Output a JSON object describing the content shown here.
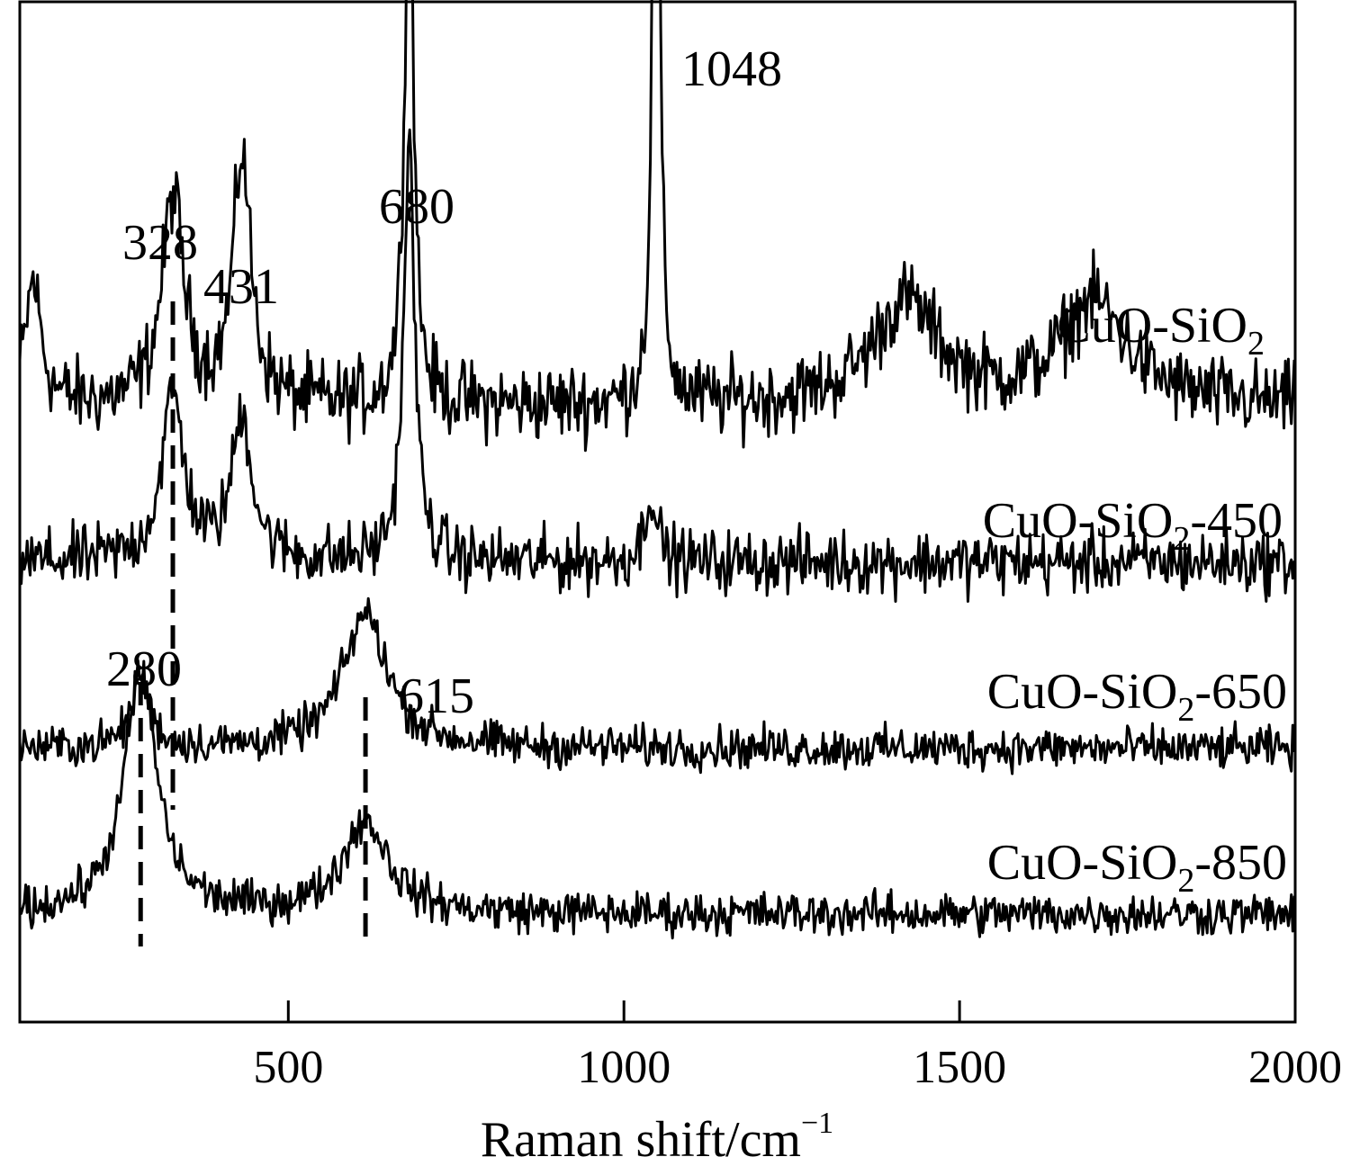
{
  "chart_data": {
    "type": "line",
    "title": "",
    "xlabel": "Raman shift/cm",
    "xlabel_superscript": "−1",
    "ylabel": "",
    "xlim": [
      100,
      2000
    ],
    "x_ticks": [
      500,
      1000,
      1500,
      2000
    ],
    "grid": false,
    "legend": "none",
    "line_color": "#000000",
    "series": [
      {
        "label_main": "CuO-SiO",
        "label_sub": "2",
        "label_suffix": "",
        "baseline": 0.55,
        "noise": 0.055,
        "peaks": [
          {
            "x": 120,
            "height": 0.12,
            "width": 14
          },
          {
            "x": 328,
            "height": 0.2,
            "width": 20
          },
          {
            "x": 431,
            "height": 0.24,
            "width": 16
          },
          {
            "x": 680,
            "height": 0.55,
            "width": 8
          },
          {
            "x": 1048,
            "height": 1.0,
            "width": 5
          },
          {
            "x": 1420,
            "height": 0.1,
            "width": 60
          },
          {
            "x": 1700,
            "height": 0.1,
            "width": 60
          }
        ]
      },
      {
        "label_main": "CuO-SiO",
        "label_sub": "2",
        "label_suffix": "-450",
        "baseline": 0.4,
        "noise": 0.045,
        "peaks": [
          {
            "x": 328,
            "height": 0.16,
            "width": 20
          },
          {
            "x": 431,
            "height": 0.14,
            "width": 18
          },
          {
            "x": 680,
            "height": 0.4,
            "width": 10
          },
          {
            "x": 1040,
            "height": 0.07,
            "width": 10
          }
        ]
      },
      {
        "label_main": "CuO-SiO",
        "label_sub": "2",
        "label_suffix": "-650",
        "baseline": 0.22,
        "noise": 0.03,
        "peaks": [
          {
            "x": 280,
            "height": 0.07,
            "width": 16
          },
          {
            "x": 615,
            "height": 0.13,
            "width": 40
          }
        ]
      },
      {
        "label_main": "CuO-SiO",
        "label_sub": "2",
        "label_suffix": "-850",
        "baseline": 0.06,
        "noise": 0.03,
        "peaks": [
          {
            "x": 280,
            "height": 0.23,
            "width": 30
          },
          {
            "x": 615,
            "height": 0.09,
            "width": 40
          }
        ]
      }
    ],
    "annotations": [
      {
        "text": "1048",
        "x": 1048
      },
      {
        "text": "680",
        "x": 680
      },
      {
        "text": "431",
        "x": 431
      },
      {
        "text": "328",
        "x": 328
      },
      {
        "text": "280",
        "x": 280
      },
      {
        "text": "615",
        "x": 615
      }
    ],
    "dashed_lines": [
      {
        "x": 328
      },
      {
        "x": 280
      },
      {
        "x": 615
      }
    ]
  }
}
